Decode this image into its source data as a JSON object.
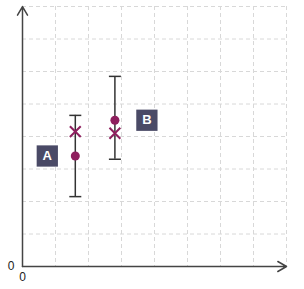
{
  "chart_data": {
    "type": "scatter",
    "x": [
      1.6,
      2.8
    ],
    "values": [
      3.4,
      4.5
    ],
    "error_low": [
      2.15,
      3.3
    ],
    "error_high": [
      4.65,
      5.85
    ],
    "x_marks": [
      4.15,
      4.1
    ],
    "point_labels": [
      "A",
      "B"
    ],
    "color": "#8e1f5e",
    "marker": "circle",
    "xlim": [
      0,
      8
    ],
    "ylim": [
      0,
      8
    ],
    "xticks": [
      0
    ],
    "yticks": [
      0
    ],
    "grid": true
  }
}
